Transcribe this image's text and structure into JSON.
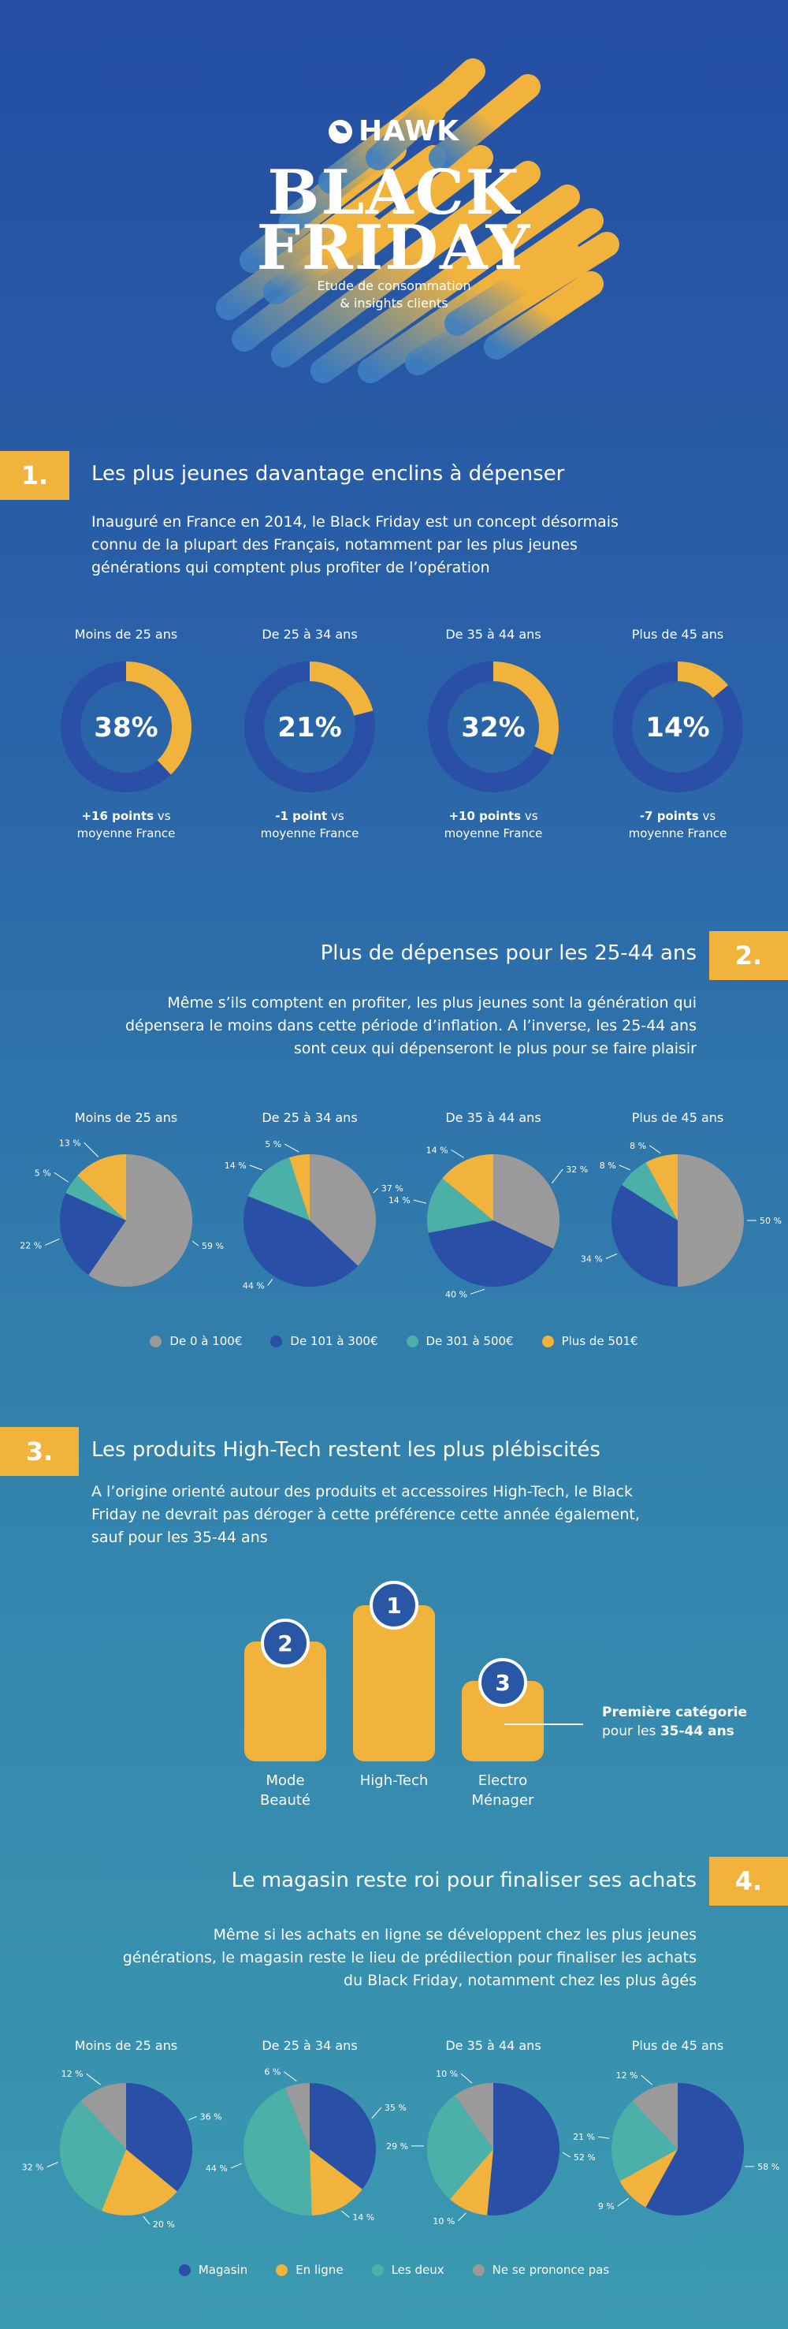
{
  "hero": {
    "brand": "HAWK",
    "title_line1": "BLACK",
    "title_line2": "FRIDAY",
    "subtitle_line1": "Etude de consommation",
    "subtitle_line2": "& insights clients"
  },
  "colors": {
    "yellow": "#f2b33d",
    "navy": "#2a4fa6",
    "grey": "#9a9a9a",
    "teal": "#4bb1a8",
    "track": "#2a4fa6"
  },
  "sections": [
    {
      "number": "1.",
      "title": "Les plus jeunes davantage enclins à dépenser",
      "body": [
        "Inauguré en France en 2014, le Black Friday est un concept désormais",
        "connu de la plupart des Français, notamment par les plus jeunes",
        "générations qui comptent plus profiter de l’opération"
      ]
    },
    {
      "number": "2.",
      "title": "Plus de dépenses pour les 25-44 ans",
      "body": [
        "Même s’ils comptent en profiter, les plus jeunes sont la génération qui",
        "dépensera le moins dans cette période d’inflation. A l’inverse, les 25-44 ans",
        "sont ceux qui dépenseront le plus pour se faire plaisir"
      ]
    },
    {
      "number": "3.",
      "title": "Les produits High-Tech restent les plus plébiscités",
      "body": [
        "A l’origine orienté autour des produits et accessoires High-Tech, le Black",
        "Friday ne devrait pas déroger à cette préférence cette année également,",
        "sauf pour les 35-44 ans"
      ]
    },
    {
      "number": "4.",
      "title": "Le magasin reste roi pour finaliser ses achats",
      "body": [
        "Même si les achats en ligne se développent chez les plus jeunes",
        "générations, le magasin reste le lieu de prédilection pour finaliser les achats",
        "du Black Friday, notamment chez les plus âgés"
      ]
    }
  ],
  "age_groups": [
    "Moins de 25 ans",
    "De 25 à 34 ans",
    "De 35 à 44 ans",
    "Plus de 45 ans"
  ],
  "donuts": [
    {
      "value_label": "38%",
      "value": 38,
      "delta_bold": "+16 points",
      "delta_rest": " vs",
      "delta_line2": "moyenne France"
    },
    {
      "value_label": "21%",
      "value": 21,
      "delta_bold": "-1 point",
      "delta_rest": " vs",
      "delta_line2": "moyenne France"
    },
    {
      "value_label": "32%",
      "value": 32,
      "delta_bold": "+10 points",
      "delta_rest": " vs",
      "delta_line2": "moyenne France"
    },
    {
      "value_label": "14%",
      "value": 14,
      "delta_bold": "-7 points",
      "delta_rest": " vs",
      "delta_line2": "moyenne France"
    }
  ],
  "chart_data": [
    {
      "type": "pie",
      "categories": [
        "Moins de 25 ans",
        "De 25 à 34 ans",
        "De 35 à 44 ans",
        "Plus de 45 ans"
      ],
      "values": [
        38,
        21,
        32,
        14
      ],
      "title": "Les plus jeunes davantage enclins à dépenser"
    },
    {
      "type": "pie",
      "title": "Plus de dépenses pour les 25-44 ans",
      "legend": [
        "De 0 à 100€",
        "De 101 à 300€",
        "De 301 à 500€",
        "Plus de 501€"
      ],
      "legend_placement": "bottom",
      "series": [
        {
          "name": "Moins de 25 ans",
          "values": [
            59,
            22,
            5,
            13
          ],
          "labels": [
            "59 %",
            "22 %",
            "5 %",
            "13 %"
          ]
        },
        {
          "name": "De 25 à 34 ans",
          "values": [
            37,
            44,
            14,
            5
          ],
          "labels": [
            "37 %",
            "44 %",
            "14 %",
            "5 %"
          ]
        },
        {
          "name": "De 35 à 44 ans",
          "values": [
            32,
            40,
            14,
            14
          ],
          "labels": [
            "32 %",
            "40 %",
            "14 %",
            "14 %"
          ]
        },
        {
          "name": "Plus de 45 ans",
          "values": [
            50,
            34,
            8,
            8
          ],
          "labels": [
            "50 %",
            "34 %",
            "8 %",
            "8 %"
          ]
        }
      ]
    },
    {
      "type": "bar",
      "title": "Les produits High-Tech restent les plus plébiscités",
      "categories": [
        "Mode Beauté",
        "High-Tech",
        "Electro Ménager"
      ],
      "ranks": [
        2,
        1,
        3
      ]
    },
    {
      "type": "pie",
      "title": "Le magasin reste roi pour finaliser ses achats",
      "legend": [
        "Magasin",
        "En ligne",
        "Les deux",
        "Ne se prononce pas"
      ],
      "legend_placement": "bottom",
      "series": [
        {
          "name": "Moins de 25 ans",
          "values": [
            36,
            20,
            32,
            12
          ],
          "labels": [
            "36 %",
            "20 %",
            "32 %",
            "12 %"
          ]
        },
        {
          "name": "De 25 à 34 ans",
          "values": [
            35,
            14,
            44,
            6
          ],
          "labels": [
            "35 %",
            "14 %",
            "44 %",
            "6 %"
          ]
        },
        {
          "name": "De 35 à 44 ans",
          "values": [
            52,
            10,
            29,
            10
          ],
          "labels": [
            "52 %",
            "10 %",
            "29 %",
            "10 %"
          ]
        },
        {
          "name": "Plus de 45 ans",
          "values": [
            58,
            9,
            21,
            12
          ],
          "labels": [
            "58 %",
            "9 %",
            "21 %",
            "12 %"
          ]
        }
      ]
    }
  ],
  "spend_legend": [
    "De 0 à 100€",
    "De 101 à 300€",
    "De 301 à 500€",
    "Plus de 501€"
  ],
  "spend_colors": [
    "#9a9a9a",
    "#2a4fa6",
    "#4bb1a8",
    "#f2b33d"
  ],
  "store_legend": [
    "Magasin",
    "En ligne",
    "Les deux",
    "Ne se prononce pas"
  ],
  "store_colors": [
    "#2a4fa6",
    "#f2b33d",
    "#4bb1a8",
    "#9a9a9a"
  ],
  "podium": {
    "items": [
      {
        "rank": "2",
        "line1": "Mode",
        "line2": "Beauté"
      },
      {
        "rank": "1",
        "line1": "High-Tech",
        "line2": ""
      },
      {
        "rank": "3",
        "line1": "Electro",
        "line2": "Ménager"
      }
    ],
    "note_line1": "Première catégorie",
    "note_line2_pre": "pour les ",
    "note_line2_bold": "35-44 ans"
  }
}
